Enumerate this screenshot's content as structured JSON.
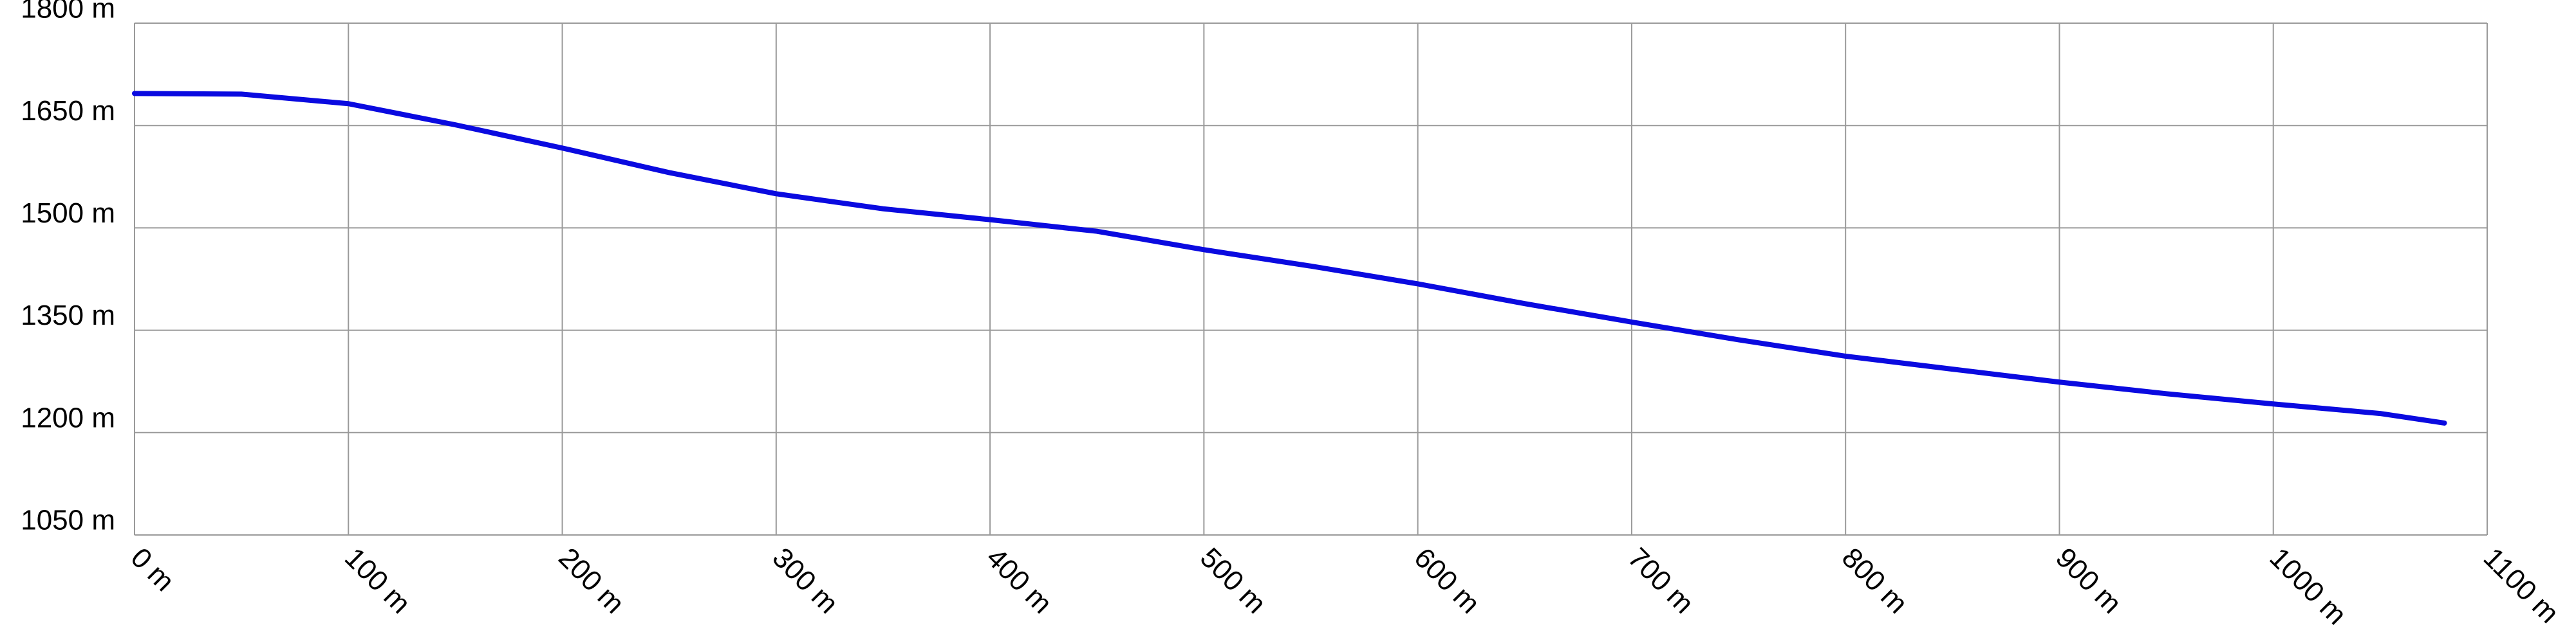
{
  "chart_data": {
    "type": "line",
    "x": [
      0,
      50,
      100,
      150,
      200,
      250,
      300,
      350,
      400,
      450,
      500,
      550,
      600,
      650,
      700,
      750,
      800,
      850,
      900,
      950,
      1000,
      1050,
      1080
    ],
    "series": [
      {
        "color": "#0a0ae0",
        "values": [
          1697,
          1696,
          1682,
          1651,
          1617,
          1581,
          1550,
          1528,
          1512,
          1495,
          1468,
          1444,
          1418,
          1389,
          1362,
          1336,
          1312,
          1293,
          1274,
          1257,
          1242,
          1228,
          1214
        ]
      }
    ],
    "xlim": [
      0,
      1100
    ],
    "xticks": [
      {
        "value": 0,
        "label": "0 m"
      },
      {
        "value": 100,
        "label": "100 m"
      },
      {
        "value": 200,
        "label": "200 m"
      },
      {
        "value": 300,
        "label": "300 m"
      },
      {
        "value": 400,
        "label": "400 m"
      },
      {
        "value": 500,
        "label": "500 m"
      },
      {
        "value": 600,
        "label": "600 m"
      },
      {
        "value": 700,
        "label": "700 m"
      },
      {
        "value": 800,
        "label": "800 m"
      },
      {
        "value": 900,
        "label": "900 m"
      },
      {
        "value": 1000,
        "label": "1000 m"
      },
      {
        "value": 1100,
        "label": "1100 m"
      }
    ],
    "ylim": [
      1050,
      1800
    ],
    "yticks": [
      {
        "value": 1050,
        "label": "1050 m"
      },
      {
        "value": 1200,
        "label": "1200 m"
      },
      {
        "value": 1350,
        "label": "1350 m"
      },
      {
        "value": 1500,
        "label": "1500 m"
      },
      {
        "value": 1650,
        "label": "1650 m"
      },
      {
        "value": 1800,
        "label": "1800 m"
      }
    ],
    "grid": true
  }
}
